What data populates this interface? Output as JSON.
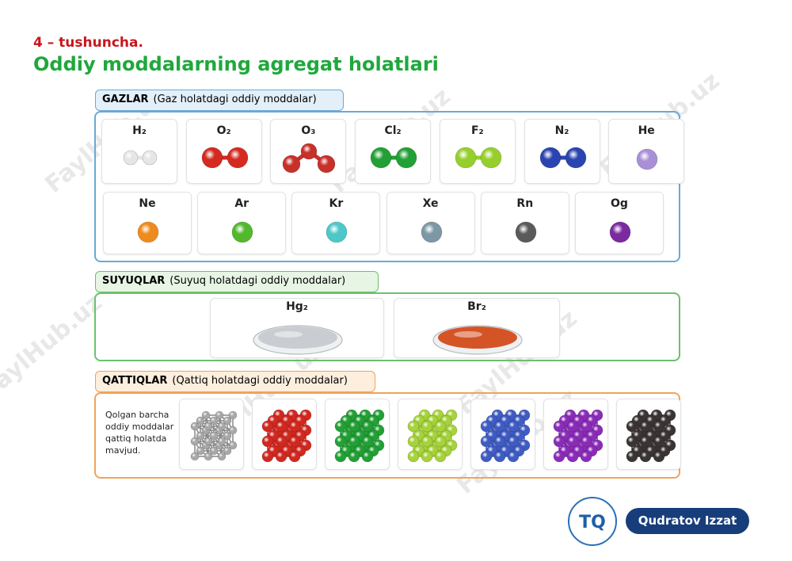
{
  "header": {
    "concept": "4 – tushuncha.",
    "title": "Oddiy moddalarning agregat holatlari"
  },
  "watermark": "FaylHub.uz",
  "gases": {
    "name": "GAZLAR",
    "description": "(Gaz holatdagi oddiy moddalar)",
    "rows": [
      [
        {
          "label": "H₂",
          "color": "#e6e6e6",
          "shape": "diatomic"
        },
        {
          "label": "O₂",
          "color": "#d42a20",
          "shape": "diatomic"
        },
        {
          "label": "O₃",
          "color": "#c8302a",
          "shape": "triatomic"
        },
        {
          "label": "Cl₂",
          "color": "#22a035",
          "shape": "diatomic"
        },
        {
          "label": "F₂",
          "color": "#96cf2c",
          "shape": "diatomic"
        },
        {
          "label": "N₂",
          "color": "#2a45b0",
          "shape": "diatomic"
        },
        {
          "label": "He",
          "color": "#a98fd6",
          "shape": "monatomic"
        }
      ],
      [
        {
          "label": "Ne",
          "color": "#ef8a1c",
          "shape": "monatomic"
        },
        {
          "label": "Ar",
          "color": "#52b82c",
          "shape": "monatomic"
        },
        {
          "label": "Kr",
          "color": "#4cc8c8",
          "shape": "monatomic"
        },
        {
          "label": "Xe",
          "color": "#7d97a4",
          "shape": "monatomic"
        },
        {
          "label": "Rn",
          "color": "#5a5a5a",
          "shape": "monatomic"
        },
        {
          "label": "Og",
          "color": "#7b2aa0",
          "shape": "monatomic"
        }
      ]
    ]
  },
  "liquids": {
    "name": "SUYUQLAR",
    "description": "(Suyuq holatdagi oddiy moddalar)",
    "items": [
      {
        "label": "Hg₂",
        "color": "#c4c8cc"
      },
      {
        "label": "Br₂",
        "color": "#d2420f"
      }
    ]
  },
  "solids": {
    "name": "QATTIQLAR",
    "description": "(Qattiq holatdagi oddiy moddalar)",
    "note": "Qolgan barcha\noddiy moddalar\nqattiq holatda\nmavjud.",
    "lattice_colors": [
      "#a8a8a8",
      "#d22820",
      "#22a035",
      "#a6d23a",
      "#3f5cc4",
      "#8a2cb8",
      "#3a3434"
    ]
  },
  "author": {
    "logo": "TQ",
    "name": "Qudratov Izzat"
  }
}
